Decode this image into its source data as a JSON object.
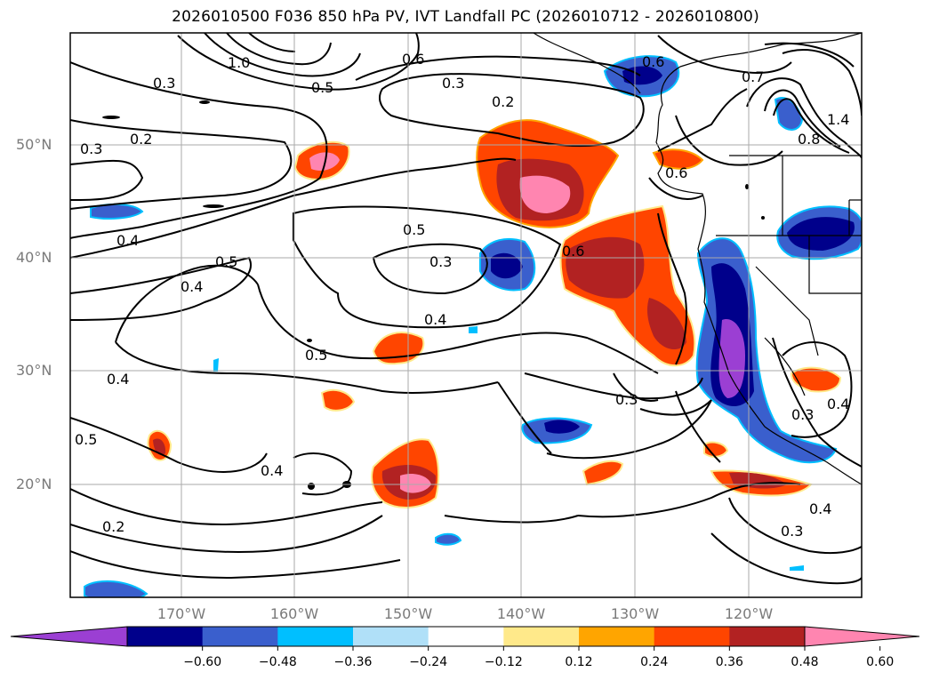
{
  "title": "2026010500 F036 850 hPa PV, IVT Landfall PC (2026010712 - 2026010800)",
  "lat_labels": [
    "50°N",
    "40°N",
    "30°N",
    "20°N"
  ],
  "lon_labels": [
    "170°W",
    "160°W",
    "150°W",
    "140°W",
    "130°W",
    "120°W"
  ],
  "contour_labels": [
    "0.3",
    "0.2",
    "0.3",
    "1.0",
    "0.5",
    "0.6",
    "0.3",
    "0.2",
    "0.6",
    "0.7",
    "1.4",
    "0.8",
    "0.4",
    "0.5",
    "0.4",
    "0.5",
    "0.3",
    "0.6",
    "0.4",
    "0.5",
    "0.4",
    "0.5",
    "0.3",
    "0.3",
    "0.4",
    "0.4",
    "0.2",
    "0.3",
    "0.4",
    "0.6"
  ],
  "colorbar": {
    "ticks": [
      "−0.60",
      "−0.48",
      "−0.36",
      "−0.24",
      "−0.12",
      "0.12",
      "0.24",
      "0.36",
      "0.48",
      "0.60"
    ],
    "colors": [
      "#9b3fd3",
      "#00008b",
      "#3a5fcd",
      "#00bfff",
      "#b0e0f8",
      "#ffffff",
      "#ffe98a",
      "#ffa500",
      "#ff4500",
      "#b22222",
      "#ff85b0"
    ]
  },
  "fill_colors": {
    "pink": "#ff85b0",
    "darkred": "#b22222",
    "orangered": "#ff4500",
    "orange": "#ffa500",
    "yellow": "#ffe98a",
    "lightblue": "#b0e0f8",
    "skyblue": "#00bfff",
    "royal": "#3a5fcd",
    "navy": "#00008b",
    "purple": "#9b3fd3"
  }
}
